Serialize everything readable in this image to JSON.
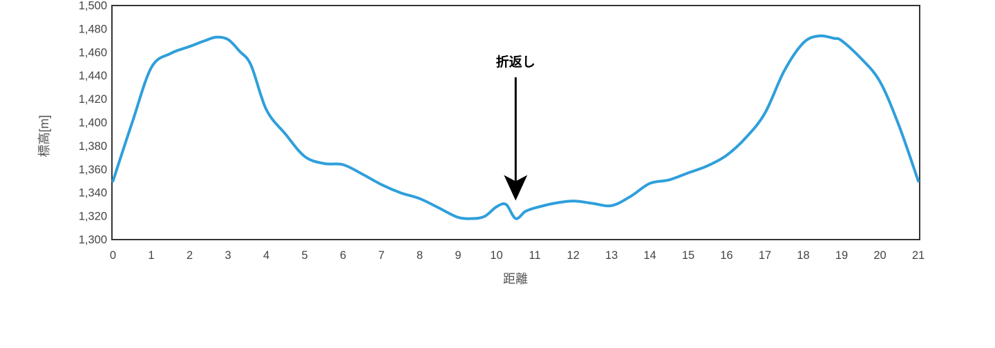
{
  "chart_data": {
    "type": "line",
    "title": "",
    "xlabel": "距離",
    "ylabel": "標高[m]",
    "xlim": [
      0,
      21
    ],
    "ylim": [
      1300,
      1500
    ],
    "grid": false,
    "legend": "none",
    "x_ticks": [
      0,
      1,
      2,
      3,
      4,
      5,
      6,
      7,
      8,
      9,
      10,
      11,
      12,
      13,
      14,
      15,
      16,
      17,
      18,
      19,
      20,
      21
    ],
    "y_ticks": [
      1300,
      1320,
      1340,
      1360,
      1380,
      1400,
      1420,
      1440,
      1460,
      1480,
      1500
    ],
    "y_tick_labels": [
      "1,300",
      "1,320",
      "1,340",
      "1,360",
      "1,380",
      "1,400",
      "1,420",
      "1,440",
      "1,460",
      "1,480",
      "1,500"
    ],
    "series": [
      {
        "color": "#2F9FDB",
        "points": [
          [
            0,
            1350
          ],
          [
            0.5,
            1400
          ],
          [
            1,
            1447
          ],
          [
            1.5,
            1459
          ],
          [
            2,
            1465
          ],
          [
            2.4,
            1470
          ],
          [
            2.7,
            1473
          ],
          [
            3,
            1471
          ],
          [
            3.3,
            1461
          ],
          [
            3.6,
            1449
          ],
          [
            4,
            1411
          ],
          [
            4.5,
            1390
          ],
          [
            5,
            1371
          ],
          [
            5.5,
            1365
          ],
          [
            6,
            1364
          ],
          [
            6.5,
            1356
          ],
          [
            7,
            1347
          ],
          [
            7.5,
            1340
          ],
          [
            8,
            1335
          ],
          [
            8.5,
            1327
          ],
          [
            9,
            1319
          ],
          [
            9.4,
            1318
          ],
          [
            9.7,
            1320
          ],
          [
            10,
            1328
          ],
          [
            10.25,
            1330
          ],
          [
            10.5,
            1318
          ],
          [
            10.75,
            1324
          ],
          [
            11,
            1327
          ],
          [
            11.5,
            1331
          ],
          [
            12,
            1333
          ],
          [
            12.5,
            1331
          ],
          [
            13,
            1329
          ],
          [
            13.5,
            1337
          ],
          [
            14,
            1348
          ],
          [
            14.5,
            1351
          ],
          [
            15,
            1357
          ],
          [
            15.5,
            1363
          ],
          [
            16,
            1372
          ],
          [
            16.5,
            1387
          ],
          [
            17,
            1408
          ],
          [
            17.5,
            1444
          ],
          [
            18,
            1468
          ],
          [
            18.4,
            1474
          ],
          [
            18.8,
            1472
          ],
          [
            19,
            1470
          ],
          [
            19.5,
            1455
          ],
          [
            20,
            1435
          ],
          [
            20.5,
            1397
          ],
          [
            21,
            1350
          ]
        ]
      }
    ],
    "annotations": [
      {
        "text": "折返し",
        "x": 10.5,
        "y": 1318,
        "arrow": "down"
      }
    ],
    "colors": {
      "series_line": "#2F9FDB",
      "plot_border": "#333333",
      "tick_text": "#444444",
      "axis_title_text": "#555555",
      "annotation_text": "#000000",
      "annotation_arrow": "#000000",
      "background": "#ffffff"
    }
  }
}
